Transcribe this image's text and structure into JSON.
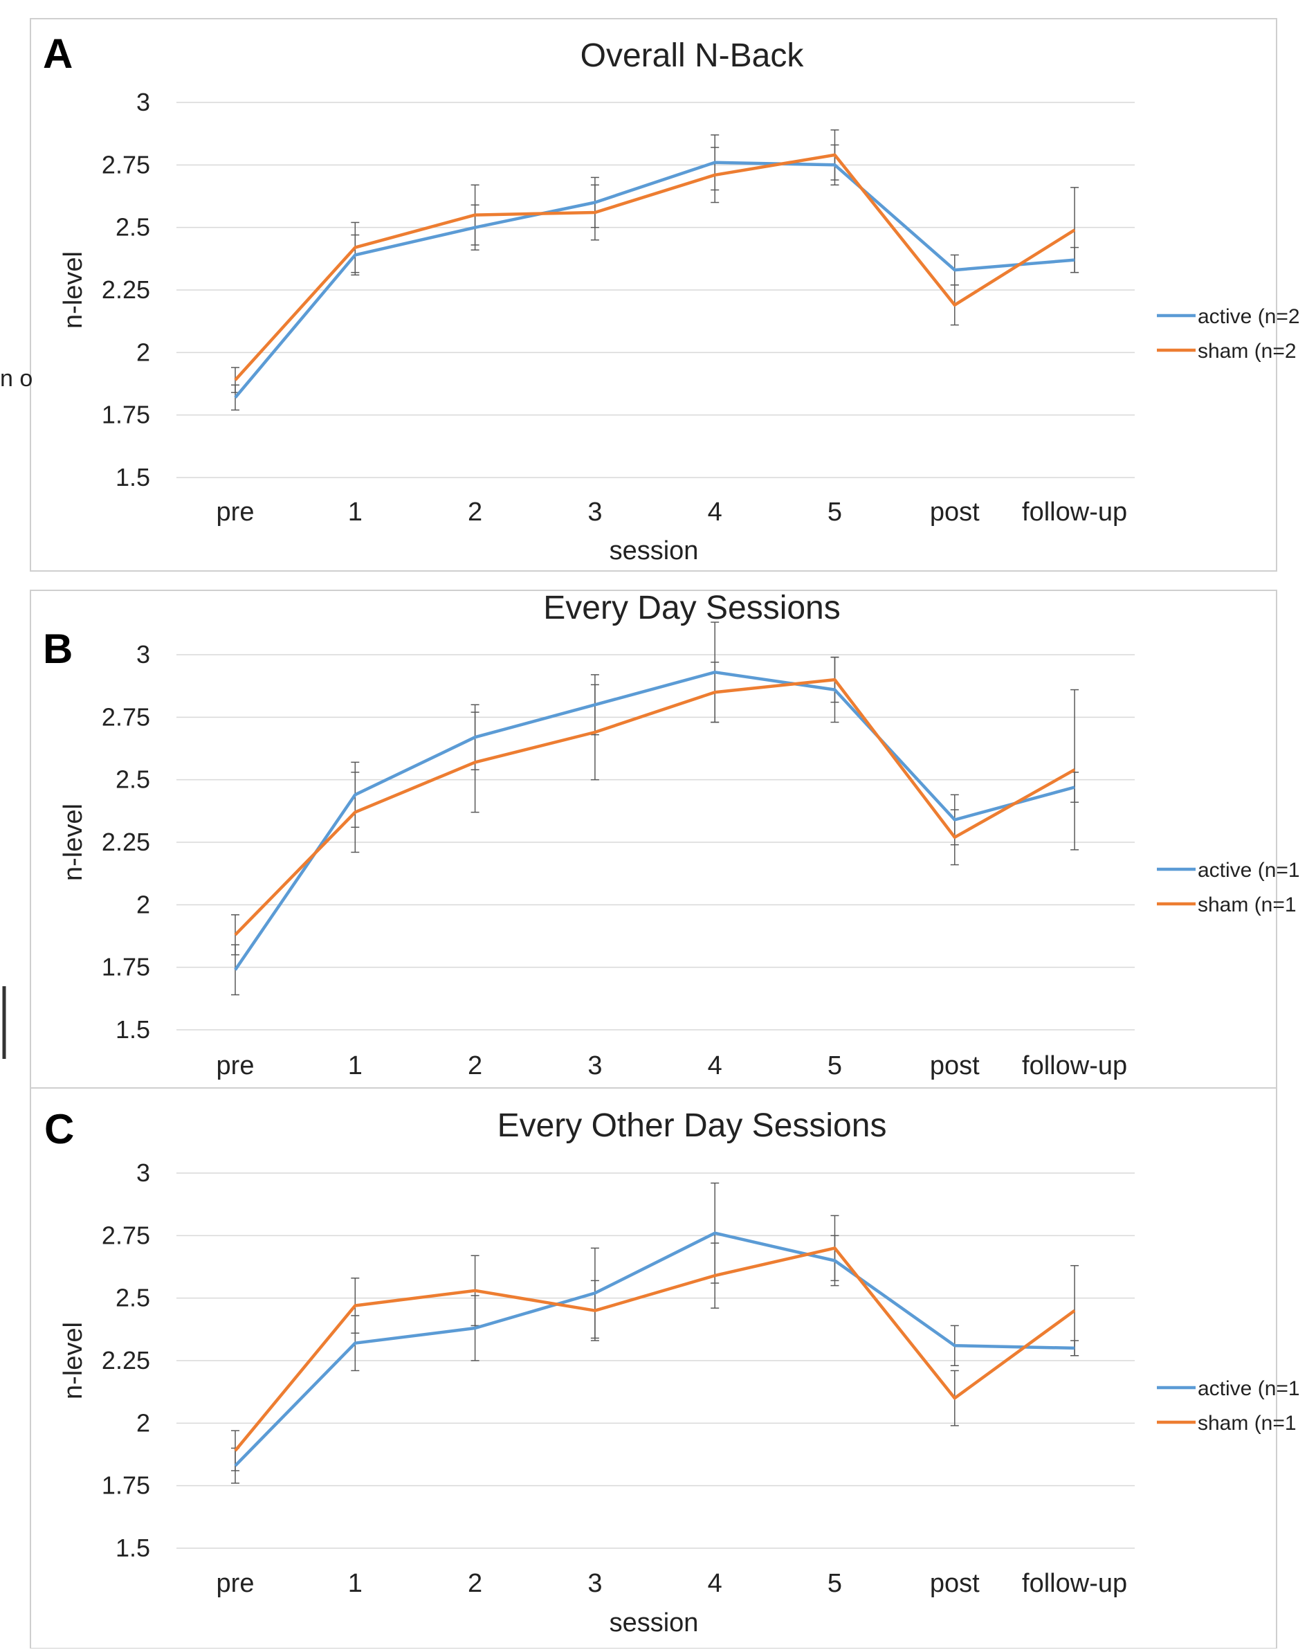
{
  "colors": {
    "active": "#5B9BD5",
    "sham": "#ED7D31",
    "grid": "#D9D9D9",
    "error_bar": "#595959",
    "text": "#222222",
    "border": "#CFCFCF"
  },
  "stray_text": "n o",
  "chart_data": [
    {
      "type": "line",
      "panel_label": "A",
      "title": "Overall N-Back",
      "xlabel": "session",
      "ylabel": "n-level",
      "categories": [
        "pre",
        "1",
        "2",
        "3",
        "4",
        "5",
        "post",
        "follow-up"
      ],
      "ylim": [
        1.5,
        3
      ],
      "yticks": [
        "1.5",
        "1.75",
        "2",
        "2.25",
        "2.5",
        "2.75",
        "3"
      ],
      "grid": true,
      "legend_position": "right",
      "series": [
        {
          "name": "active (n=2",
          "color": "#5B9BD5",
          "values": [
            1.82,
            2.39,
            2.5,
            2.6,
            2.76,
            2.75,
            2.33,
            2.37
          ],
          "errors": [
            0.05,
            0.08,
            0.09,
            0.1,
            0.11,
            0.08,
            0.06,
            0.05
          ]
        },
        {
          "name": "sham (n=2",
          "color": "#ED7D31",
          "values": [
            1.89,
            2.42,
            2.55,
            2.56,
            2.71,
            2.79,
            2.19,
            2.49
          ],
          "errors": [
            0.05,
            0.1,
            0.12,
            0.11,
            0.11,
            0.1,
            0.08,
            0.17
          ]
        }
      ]
    },
    {
      "type": "line",
      "panel_label": "B",
      "title": "Every Day Sessions",
      "xlabel": "",
      "ylabel": "n-level",
      "categories": [
        "pre",
        "1",
        "2",
        "3",
        "4",
        "5",
        "post",
        "follow-up"
      ],
      "ylim": [
        1.5,
        3
      ],
      "yticks": [
        "1.5",
        "1.75",
        "2",
        "2.25",
        "2.5",
        "2.75",
        "3"
      ],
      "grid": true,
      "legend_position": "right",
      "series": [
        {
          "name": "active (n=1",
          "color": "#5B9BD5",
          "values": [
            1.74,
            2.44,
            2.67,
            2.8,
            2.93,
            2.86,
            2.34,
            2.47
          ],
          "errors": [
            0.1,
            0.13,
            0.13,
            0.12,
            0.2,
            0.13,
            0.1,
            0.06
          ]
        },
        {
          "name": "sham (n=1",
          "color": "#ED7D31",
          "values": [
            1.88,
            2.37,
            2.57,
            2.69,
            2.85,
            2.9,
            2.27,
            2.54
          ],
          "errors": [
            0.08,
            0.16,
            0.2,
            0.19,
            0.12,
            0.09,
            0.11,
            0.32
          ]
        }
      ]
    },
    {
      "type": "line",
      "panel_label": "C",
      "title": "Every Other Day Sessions",
      "xlabel": "session",
      "ylabel": "n-level",
      "categories": [
        "pre",
        "1",
        "2",
        "3",
        "4",
        "5",
        "post",
        "follow-up"
      ],
      "ylim": [
        1.5,
        3
      ],
      "yticks": [
        "1.5",
        "1.75",
        "2",
        "2.25",
        "2.5",
        "2.75",
        "3"
      ],
      "grid": true,
      "legend_position": "right",
      "series": [
        {
          "name": "active (n=1",
          "color": "#5B9BD5",
          "values": [
            1.83,
            2.32,
            2.38,
            2.52,
            2.76,
            2.65,
            2.31,
            2.3
          ],
          "errors": [
            0.07,
            0.11,
            0.13,
            0.18,
            0.2,
            0.1,
            0.08,
            0.03
          ]
        },
        {
          "name": "sham (n=1",
          "color": "#ED7D31",
          "values": [
            1.89,
            2.47,
            2.53,
            2.45,
            2.59,
            2.7,
            2.1,
            2.45
          ],
          "errors": [
            0.08,
            0.11,
            0.14,
            0.12,
            0.13,
            0.13,
            0.11,
            0.18
          ]
        }
      ]
    }
  ]
}
